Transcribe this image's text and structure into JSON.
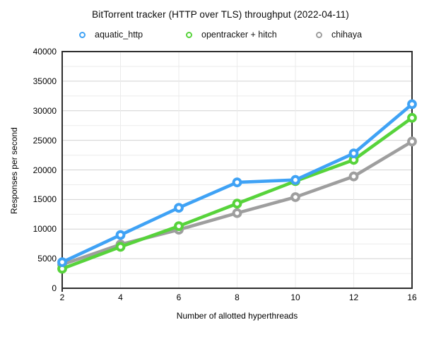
{
  "title": "BitTorrent tracker (HTTP over TLS) throughput (2022-04-11)",
  "chart_data": {
    "type": "line",
    "title": "BitTorrent tracker (HTTP over TLS) throughput (2022-04-11)",
    "x": [
      2,
      4,
      6,
      8,
      10,
      12,
      16
    ],
    "x_evenly_spaced_categories": true,
    "xlabel": "Number of allotted hyperthreads",
    "ylabel": "Responses per second",
    "ylim": [
      0,
      40000
    ],
    "y_major_step": 5000,
    "y_minor_step": 2500,
    "grid": true,
    "legend_position": "top",
    "marker_style": "ring",
    "series": [
      {
        "name": "aquatic_http",
        "color": "#3FA2F5",
        "values": [
          4400,
          9000,
          13600,
          17900,
          18300,
          22800,
          31100
        ]
      },
      {
        "name": "opentracker + hitch",
        "color": "#57D33B",
        "values": [
          3300,
          7000,
          10500,
          14300,
          18100,
          21700,
          28800
        ]
      },
      {
        "name": "chihaya",
        "color": "#9E9E9E",
        "values": [
          4000,
          7400,
          9900,
          12700,
          15400,
          18900,
          24800
        ]
      }
    ]
  },
  "colors": {
    "frame": "#2e2e2e",
    "grid_major": "#d2d2d2",
    "grid_minor": "#ebebeb",
    "background": "#ffffff",
    "text": "#000000"
  }
}
